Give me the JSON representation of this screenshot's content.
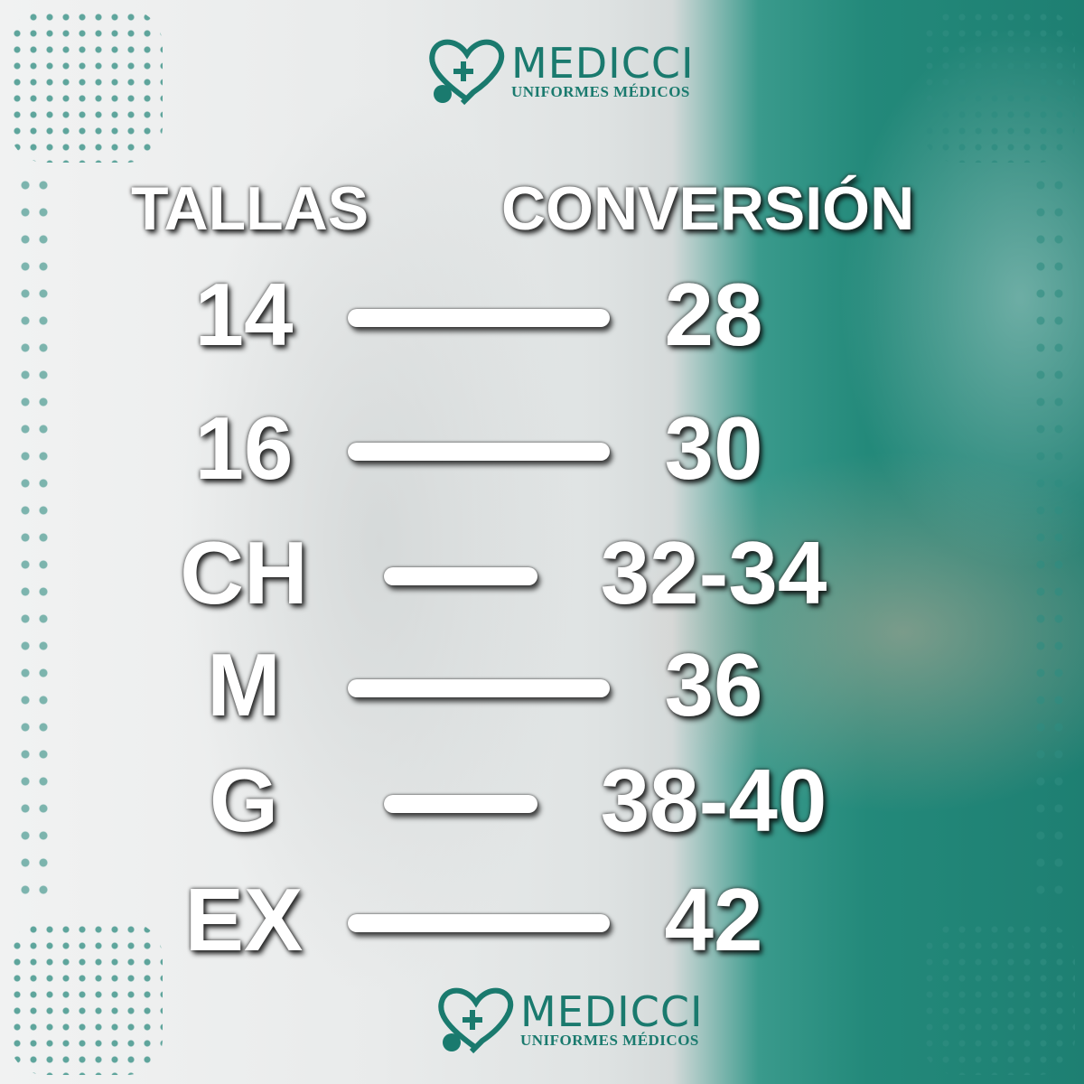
{
  "brand": {
    "name": "MEDICCI",
    "tagline": "UNIFORMES MÉDICOS",
    "color": "#1a7a6e",
    "icon": "heart-stethoscope-logo"
  },
  "headers": {
    "left": "TALLAS",
    "right": "CONVERSIÓN"
  },
  "rows": [
    {
      "talla": "14",
      "conversion": "28"
    },
    {
      "talla": "16",
      "conversion": "30"
    },
    {
      "talla": "CH",
      "conversion": "32-34"
    },
    {
      "talla": "M",
      "conversion": "36"
    },
    {
      "talla": "G",
      "conversion": "38-40"
    },
    {
      "talla": "EX",
      "conversion": "42"
    }
  ]
}
